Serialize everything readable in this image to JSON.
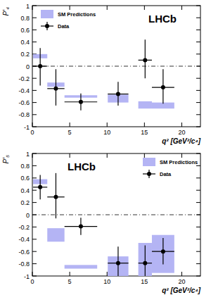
{
  "chart_data": [
    {
      "type": "scatter",
      "y_label": "P′₄",
      "x_label": "q² [GeV²/c⁴]",
      "annotations": [
        "LHCb"
      ],
      "xlim": [
        0,
        22.5
      ],
      "xticks": [
        0,
        5,
        10,
        15,
        20
      ],
      "ylim": [
        -1,
        1
      ],
      "yticks": [
        -1,
        -0.8,
        -0.6,
        -0.4,
        -0.2,
        0,
        0.2,
        0.4,
        0.6,
        0.8,
        1
      ],
      "hlines": [
        0
      ],
      "legend": "upper left",
      "series": [
        {
          "name": "SM Predictions",
          "type": "box",
          "color": "#b4b4f4",
          "x_low": [
            0.1,
            2,
            4.3,
            10.09,
            14.18,
            16
          ],
          "x_high": [
            2,
            4.3,
            8.68,
            12.86,
            16,
            19
          ],
          "low": [
            0.13,
            -0.34,
            -0.52,
            -0.6,
            -0.7,
            -0.7
          ],
          "high": [
            0.2,
            -0.27,
            -0.48,
            -0.47,
            -0.58,
            -0.6
          ]
        },
        {
          "name": "Data",
          "type": "scatter",
          "color": "#000000",
          "marker": "circle",
          "x": [
            1.05,
            3.15,
            6.49,
            11.48,
            15.09,
            17.5
          ],
          "x_low": [
            0.1,
            2,
            4.3,
            10.09,
            14.18,
            16
          ],
          "x_high": [
            2,
            4.3,
            8.68,
            12.86,
            16,
            19
          ],
          "values": [
            0.0,
            -0.37,
            -0.59,
            -0.46,
            0.1,
            -0.35
          ],
          "error_low": [
            0.32,
            0.28,
            0.14,
            0.19,
            0.3,
            0.27
          ],
          "error_high": [
            0.3,
            0.32,
            0.14,
            0.2,
            0.34,
            0.3
          ]
        }
      ]
    },
    {
      "type": "scatter",
      "y_label": "P′₅",
      "x_label": "q² [GeV²/c⁴]",
      "annotations": [
        "LHCb"
      ],
      "xlim": [
        0,
        22.5
      ],
      "xticks": [
        0,
        5,
        10,
        15,
        20
      ],
      "ylim": [
        -1,
        1
      ],
      "yticks": [
        -1,
        -0.8,
        -0.6,
        -0.4,
        -0.2,
        0,
        0.2,
        0.4,
        0.6,
        0.8,
        1
      ],
      "hlines": [
        0
      ],
      "legend": "upper right",
      "series": [
        {
          "name": "SM Predictions",
          "type": "box",
          "color": "#b4b4f4",
          "x_low": [
            0.1,
            2,
            4.3,
            10.09,
            14.18,
            16
          ],
          "x_high": [
            2,
            4.3,
            8.68,
            12.86,
            16,
            19
          ],
          "low": [
            0.5,
            -0.44,
            -0.88,
            -1.0,
            -1.0,
            -0.95
          ],
          "high": [
            0.58,
            -0.22,
            -0.82,
            -0.68,
            -0.46,
            -0.33
          ]
        },
        {
          "name": "Data",
          "type": "scatter",
          "color": "#000000",
          "marker": "circle",
          "x": [
            1.05,
            3.15,
            6.49,
            11.48,
            15.09,
            17.5
          ],
          "x_low": [
            0.1,
            2,
            4.3,
            10.09,
            14.18,
            16
          ],
          "x_high": [
            2,
            4.3,
            8.68,
            12.86,
            16,
            19
          ],
          "values": [
            0.45,
            0.29,
            -0.19,
            -0.79,
            -0.79,
            -0.6
          ],
          "error_low": [
            0.2,
            0.35,
            0.14,
            0.22,
            0.22,
            0.21
          ],
          "error_high": [
            0.2,
            0.39,
            0.14,
            0.27,
            0.29,
            0.22
          ]
        }
      ]
    }
  ]
}
